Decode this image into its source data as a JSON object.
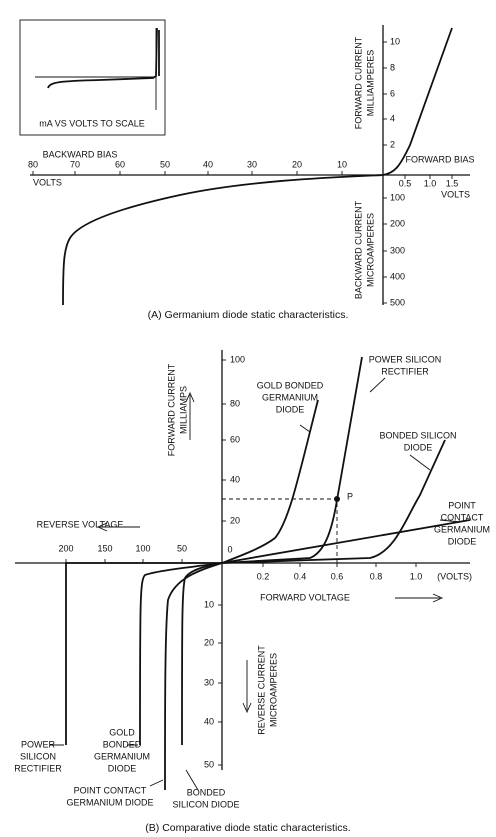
{
  "figure_a": {
    "inset_label": "mA VS VOLTS TO SCALE",
    "backward_bias": "BACKWARD BIAS",
    "forward_bias": "FORWARD BIAS",
    "volts_left": "VOLTS",
    "volts_right": "VOLTS",
    "forward_current": [
      "FORWARD CURRENT",
      "MILLIAMPERES"
    ],
    "backward_current": [
      "BACKWARD CURRENT",
      "MICROAMPERES"
    ],
    "x_ticks_left": [
      "80",
      "70",
      "60",
      "50",
      "40",
      "30",
      "20",
      "10"
    ],
    "x_ticks_right": [
      "0.5",
      "1.0",
      "1.5"
    ],
    "y_ticks_up": [
      "2",
      "4",
      "6",
      "8",
      "10"
    ],
    "y_ticks_down": [
      "100",
      "200",
      "300",
      "400",
      "500"
    ],
    "caption": "(A) Germanium diode static characteristics."
  },
  "figure_b": {
    "forward_current": [
      "FORWARD CURRENT",
      "MILLIAMPS"
    ],
    "reverse_current": [
      "REVERSE CURRENT",
      "MICROAMPERES"
    ],
    "reverse_voltage": "REVERSE VOLTAGE",
    "forward_voltage": "FORWARD VOLTAGE",
    "volts": "(VOLTS)",
    "origin": "0",
    "point": "P",
    "x_ticks_left": [
      "200",
      "150",
      "100",
      "50"
    ],
    "x_ticks_right": [
      "0.2",
      "0.4",
      "0.6",
      "0.8",
      "1.0"
    ],
    "y_ticks_up": [
      "20",
      "40",
      "60",
      "80",
      "100"
    ],
    "y_ticks_down": [
      "10",
      "20",
      "30",
      "40",
      "50"
    ],
    "labels_top": {
      "gold_bonded": [
        "GOLD BONDED",
        "GERMANIUM",
        "DIODE"
      ],
      "power_silicon": [
        "POWER SILICON",
        "RECTIFIER"
      ],
      "bonded_silicon": [
        "BONDED SILICON",
        "DIODE"
      ],
      "point_contact": [
        "POINT",
        "CONTACT",
        "GERMANIUM",
        "DIODE"
      ]
    },
    "labels_bottom": {
      "power_silicon": [
        "POWER",
        "SILICON",
        "RECTIFIER"
      ],
      "gold_bonded": [
        "GOLD",
        "BONDED",
        "GERMANIUM",
        "DIODE"
      ],
      "point_contact": [
        "POINT CONTACT",
        "GERMANIUM DIODE"
      ],
      "bonded_silicon": [
        "BONDED",
        "SILICON DIODE"
      ]
    },
    "caption": "(B) Comparative diode static characteristics."
  }
}
